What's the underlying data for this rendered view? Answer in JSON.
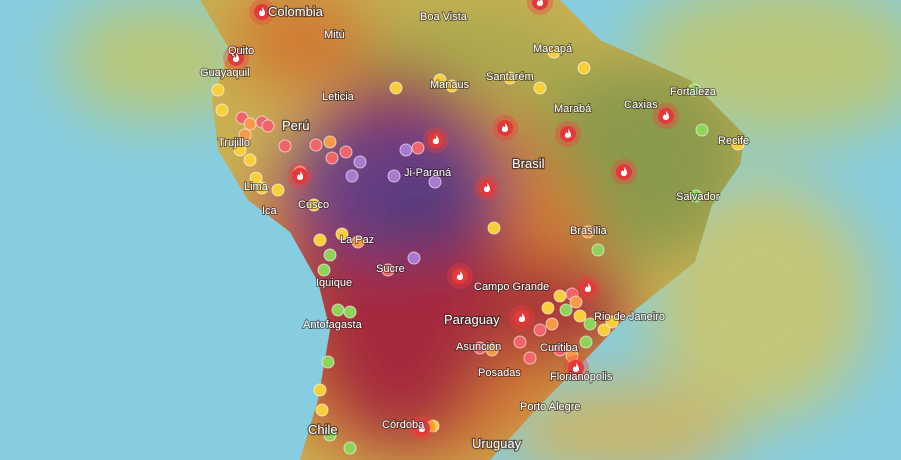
{
  "map": {
    "countries": [
      "Colombia",
      "Perú",
      "Brasil",
      "Paraguay",
      "Chile",
      "Uruguay"
    ],
    "cities": [
      "Boa Vista",
      "Mitú",
      "Quito",
      "Guayaquil",
      "Macapá",
      "Santarém",
      "Manaus",
      "Fortaleza",
      "Leticia",
      "Caxias",
      "Marabá",
      "Trujillo",
      "Recife",
      "Ji-Paraná",
      "Lima",
      "Salvador",
      "Ica",
      "Cusco",
      "Brasília",
      "La Paz",
      "Sucre",
      "Iquique",
      "Campo Grande",
      "Antofagasta",
      "Rio de Janeiro",
      "Asunción",
      "Curitiba",
      "Posadas",
      "Florianópolis",
      "Porto Alegre",
      "Córdoba"
    ]
  }
}
